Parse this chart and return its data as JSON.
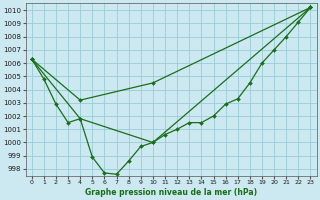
{
  "background_color": "#cce8f0",
  "grid_color": "#99ccd8",
  "line_color": "#1a6e1a",
  "title": "Graphe pression niveau de la mer (hPa)",
  "xlim": [
    -0.5,
    23.5
  ],
  "ylim": [
    997.5,
    1010.5
  ],
  "yticks": [
    998,
    999,
    1000,
    1001,
    1002,
    1003,
    1004,
    1005,
    1006,
    1007,
    1008,
    1009,
    1010
  ],
  "xticks": [
    0,
    1,
    2,
    3,
    4,
    5,
    6,
    7,
    8,
    9,
    10,
    11,
    12,
    13,
    14,
    15,
    16,
    17,
    18,
    19,
    20,
    21,
    22,
    23
  ],
  "series1": {
    "x": [
      0,
      1,
      2,
      3,
      4,
      5,
      6,
      7,
      8,
      9,
      10,
      11,
      12,
      13,
      14,
      15,
      16,
      17,
      18,
      19,
      20,
      21,
      22,
      23
    ],
    "y": [
      1006.3,
      1004.8,
      1002.9,
      1001.5,
      1001.8,
      998.9,
      997.7,
      997.6,
      998.6,
      999.7,
      1000.0,
      1000.6,
      1001.0,
      1001.5,
      1001.5,
      1002.0,
      1002.9,
      1003.3,
      1004.5,
      1006.0,
      1007.0,
      1008.0,
      1009.1,
      1010.2
    ]
  },
  "series2": {
    "x": [
      0,
      4,
      10,
      23
    ],
    "y": [
      1006.3,
      1003.2,
      1004.5,
      1010.2
    ]
  },
  "series3": {
    "x": [
      0,
      4,
      10,
      23
    ],
    "y": [
      1006.3,
      1001.8,
      1000.0,
      1010.2
    ]
  }
}
